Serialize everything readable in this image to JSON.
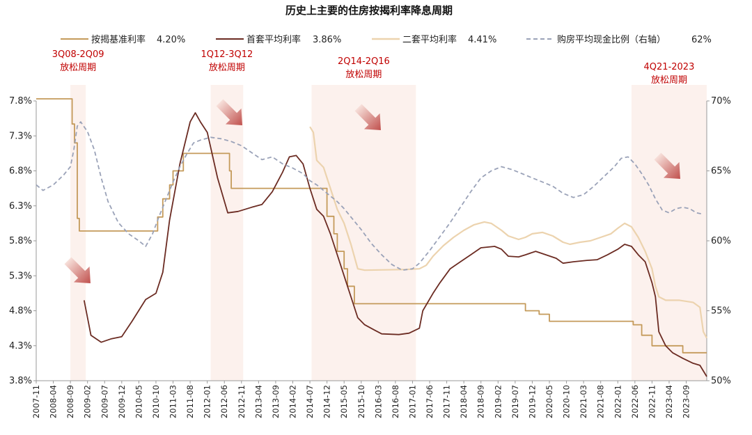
{
  "chart_data": {
    "type": "line",
    "title": "历史上主要的住房按揭利率降息周期",
    "xlabel": "",
    "ylabel_left": "",
    "ylabel_right": "",
    "y_left": {
      "min": 3.8,
      "max": 7.8,
      "ticks": [
        "3.8%",
        "4.3%",
        "4.8%",
        "5.3%",
        "5.8%",
        "6.3%",
        "6.8%",
        "7.3%",
        "7.8%"
      ]
    },
    "y_right": {
      "min": 50,
      "max": 70,
      "ticks": [
        "50%",
        "55%",
        "60%",
        "65%",
        "70%"
      ]
    },
    "x_ticks": [
      "2007-11",
      "2008-04",
      "2008-09",
      "2009-02",
      "2009-07",
      "2009-12",
      "2010-05",
      "2010-10",
      "2011-03",
      "2011-08",
      "2012-01",
      "2012-06",
      "2012-11",
      "2013-04",
      "2013-09",
      "2014-02",
      "2014-07",
      "2014-12",
      "2015-05",
      "2015-10",
      "2016-03",
      "2016-08",
      "2017-01",
      "2017-06",
      "2017-11",
      "2018-04",
      "2018-09",
      "2019-02",
      "2019-07",
      "2019-12",
      "2020-05",
      "2020-10",
      "2021-03",
      "2021-08",
      "2022-01",
      "2022-06",
      "2022-11",
      "2023-04",
      "2023-09"
    ],
    "legend": [
      {
        "label": "按揭基准利率",
        "value": "4.20%",
        "color": "#c49a5a",
        "style": "solid"
      },
      {
        "label": "首套平均利率",
        "value": "3.86%",
        "color": "#6b2b22",
        "style": "solid"
      },
      {
        "label": "二套平均利率",
        "value": "4.41%",
        "color": "#ecd3ae",
        "style": "solid"
      },
      {
        "label": "购房平均现金比例（右轴）",
        "value": "62%",
        "color": "#9aa2b8",
        "style": "dashed"
      }
    ],
    "cycles": [
      {
        "line1": "3Q08-2Q09",
        "line2": "放松周期",
        "start": 10,
        "end": 14.5
      },
      {
        "line1": "1Q12-3Q12",
        "line2": "放松周期",
        "start": 51,
        "end": 60.5
      },
      {
        "line1": "2Q14-2Q16",
        "line2": "放松周期",
        "start": 80.5,
        "end": 111
      },
      {
        "line1": "4Q21-2023",
        "line2": "放松周期",
        "start": 174,
        "end": 196
      }
    ],
    "series": [
      {
        "name": "按揭基准利率",
        "axis": "left",
        "step": true,
        "color": "#c49a5a",
        "points": [
          [
            0,
            7.83
          ],
          [
            10,
            7.83
          ],
          [
            10.5,
            7.47
          ],
          [
            11.2,
            7.2
          ],
          [
            12,
            6.12
          ],
          [
            12.6,
            5.94
          ],
          [
            35,
            5.94
          ],
          [
            35.5,
            6.14
          ],
          [
            37,
            6.4
          ],
          [
            39,
            6.6
          ],
          [
            40,
            6.8
          ],
          [
            43,
            7.05
          ],
          [
            56,
            7.05
          ],
          [
            56.5,
            6.8
          ],
          [
            57,
            6.55
          ],
          [
            84,
            6.55
          ],
          [
            85,
            6.15
          ],
          [
            87,
            5.9
          ],
          [
            88,
            5.65
          ],
          [
            90,
            5.4
          ],
          [
            91,
            5.15
          ],
          [
            93,
            4.9
          ],
          [
            140,
            4.9
          ],
          [
            143,
            4.8
          ],
          [
            147,
            4.75
          ],
          [
            150,
            4.65
          ],
          [
            174,
            4.65
          ],
          [
            174.5,
            4.6
          ],
          [
            176.5,
            4.6
          ],
          [
            177,
            4.45
          ],
          [
            180,
            4.3
          ],
          [
            188,
            4.3
          ],
          [
            189,
            4.2
          ],
          [
            196,
            4.2
          ]
        ]
      },
      {
        "name": "首套平均利率",
        "axis": "left",
        "step": false,
        "color": "#6b2b22",
        "points": [
          [
            14,
            4.95
          ],
          [
            16,
            4.45
          ],
          [
            19,
            4.35
          ],
          [
            22,
            4.4
          ],
          [
            25,
            4.43
          ],
          [
            28,
            4.65
          ],
          [
            32,
            4.96
          ],
          [
            35,
            5.05
          ],
          [
            37,
            5.35
          ],
          [
            39,
            6.1
          ],
          [
            42,
            6.9
          ],
          [
            45,
            7.5
          ],
          [
            46.5,
            7.63
          ],
          [
            48,
            7.5
          ],
          [
            50,
            7.35
          ],
          [
            53,
            6.7
          ],
          [
            56,
            6.2
          ],
          [
            59,
            6.22
          ],
          [
            63,
            6.28
          ],
          [
            66,
            6.32
          ],
          [
            69,
            6.5
          ],
          [
            72,
            6.78
          ],
          [
            74,
            7.0
          ],
          [
            76,
            7.02
          ],
          [
            78,
            6.9
          ],
          [
            80,
            6.55
          ],
          [
            82,
            6.25
          ],
          [
            84,
            6.15
          ],
          [
            86,
            5.9
          ],
          [
            88,
            5.6
          ],
          [
            90,
            5.3
          ],
          [
            92,
            5.0
          ],
          [
            94,
            4.7
          ],
          [
            96,
            4.6
          ],
          [
            99,
            4.52
          ],
          [
            101,
            4.47
          ],
          [
            106,
            4.46
          ],
          [
            109,
            4.48
          ],
          [
            112,
            4.55
          ],
          [
            113,
            4.8
          ],
          [
            116,
            5.05
          ],
          [
            118,
            5.2
          ],
          [
            121,
            5.4
          ],
          [
            124,
            5.5
          ],
          [
            127,
            5.6
          ],
          [
            130,
            5.7
          ],
          [
            134,
            5.72
          ],
          [
            136,
            5.68
          ],
          [
            138,
            5.58
          ],
          [
            141,
            5.57
          ],
          [
            143,
            5.6
          ],
          [
            146,
            5.65
          ],
          [
            149,
            5.6
          ],
          [
            152,
            5.55
          ],
          [
            154,
            5.48
          ],
          [
            157,
            5.5
          ],
          [
            161,
            5.52
          ],
          [
            164,
            5.53
          ],
          [
            167,
            5.6
          ],
          [
            170,
            5.68
          ],
          [
            172,
            5.75
          ],
          [
            174,
            5.72
          ],
          [
            176,
            5.6
          ],
          [
            178,
            5.5
          ],
          [
            180,
            5.2
          ],
          [
            181,
            5.0
          ],
          [
            182,
            4.5
          ],
          [
            184,
            4.3
          ],
          [
            186,
            4.2
          ],
          [
            189,
            4.12
          ],
          [
            192,
            4.05
          ],
          [
            194,
            4.02
          ],
          [
            196,
            3.86
          ]
        ]
      },
      {
        "name": "二套平均利率",
        "axis": "left",
        "step": false,
        "color": "#ecd3ae",
        "points": [
          [
            80,
            7.43
          ],
          [
            81,
            7.35
          ],
          [
            82,
            6.95
          ],
          [
            84,
            6.85
          ],
          [
            86,
            6.55
          ],
          [
            88,
            6.25
          ],
          [
            90,
            6.05
          ],
          [
            92,
            5.75
          ],
          [
            94,
            5.4
          ],
          [
            96,
            5.38
          ],
          [
            108,
            5.39
          ],
          [
            112,
            5.4
          ],
          [
            114,
            5.45
          ],
          [
            116,
            5.58
          ],
          [
            119,
            5.73
          ],
          [
            122,
            5.85
          ],
          [
            125,
            5.95
          ],
          [
            128,
            6.03
          ],
          [
            131,
            6.07
          ],
          [
            133,
            6.05
          ],
          [
            136,
            5.95
          ],
          [
            138,
            5.87
          ],
          [
            141,
            5.82
          ],
          [
            143,
            5.85
          ],
          [
            145,
            5.9
          ],
          [
            148,
            5.92
          ],
          [
            151,
            5.87
          ],
          [
            154,
            5.78
          ],
          [
            156,
            5.75
          ],
          [
            159,
            5.78
          ],
          [
            162,
            5.8
          ],
          [
            165,
            5.85
          ],
          [
            168,
            5.9
          ],
          [
            170,
            5.98
          ],
          [
            172,
            6.05
          ],
          [
            174,
            6.0
          ],
          [
            176,
            5.85
          ],
          [
            178,
            5.65
          ],
          [
            180,
            5.4
          ],
          [
            181,
            5.15
          ],
          [
            182,
            5.0
          ],
          [
            184,
            4.95
          ],
          [
            188,
            4.95
          ],
          [
            192,
            4.92
          ],
          [
            194,
            4.85
          ],
          [
            195,
            4.5
          ],
          [
            196,
            4.41
          ]
        ]
      },
      {
        "name": "购房平均现金比例（右轴）",
        "axis": "right",
        "step": false,
        "dashed": true,
        "color": "#9aa2b8",
        "points": [
          [
            0,
            64.0
          ],
          [
            2,
            63.6
          ],
          [
            5,
            64.0
          ],
          [
            8,
            64.7
          ],
          [
            10,
            65.3
          ],
          [
            11,
            66.5
          ],
          [
            12,
            68.2
          ],
          [
            13,
            68.5
          ],
          [
            15,
            67.8
          ],
          [
            17,
            66.5
          ],
          [
            19,
            64.5
          ],
          [
            21,
            62.8
          ],
          [
            24,
            61.3
          ],
          [
            27,
            60.5
          ],
          [
            30,
            60.0
          ],
          [
            32,
            59.6
          ],
          [
            34,
            60.5
          ],
          [
            36,
            61.8
          ],
          [
            38,
            63.0
          ],
          [
            40,
            64.2
          ],
          [
            42,
            65.3
          ],
          [
            44,
            66.2
          ],
          [
            46,
            67.0
          ],
          [
            48,
            67.2
          ],
          [
            51,
            67.4
          ],
          [
            54,
            67.3
          ],
          [
            57,
            67.1
          ],
          [
            60,
            66.8
          ],
          [
            63,
            66.3
          ],
          [
            66,
            65.8
          ],
          [
            69,
            66.0
          ],
          [
            72,
            65.5
          ],
          [
            75,
            65.2
          ],
          [
            78,
            64.8
          ],
          [
            80,
            64.3
          ],
          [
            82,
            64.0
          ],
          [
            84,
            63.6
          ],
          [
            86,
            63.2
          ],
          [
            88,
            62.8
          ],
          [
            90,
            62.3
          ],
          [
            92,
            61.7
          ],
          [
            95,
            60.8
          ],
          [
            98,
            59.8
          ],
          [
            101,
            59.0
          ],
          [
            104,
            58.3
          ],
          [
            107,
            57.9
          ],
          [
            110,
            58.0
          ],
          [
            112,
            58.4
          ],
          [
            115,
            59.3
          ],
          [
            118,
            60.3
          ],
          [
            121,
            61.3
          ],
          [
            124,
            62.4
          ],
          [
            127,
            63.5
          ],
          [
            130,
            64.5
          ],
          [
            133,
            65.0
          ],
          [
            136,
            65.3
          ],
          [
            139,
            65.1
          ],
          [
            142,
            64.8
          ],
          [
            145,
            64.5
          ],
          [
            148,
            64.2
          ],
          [
            151,
            63.9
          ],
          [
            154,
            63.4
          ],
          [
            157,
            63.1
          ],
          [
            160,
            63.3
          ],
          [
            163,
            63.9
          ],
          [
            166,
            64.6
          ],
          [
            169,
            65.3
          ],
          [
            171,
            65.9
          ],
          [
            173,
            66.0
          ],
          [
            175,
            65.5
          ],
          [
            177,
            64.8
          ],
          [
            179,
            64.0
          ],
          [
            181,
            63.0
          ],
          [
            183,
            62.2
          ],
          [
            185,
            62.0
          ],
          [
            187,
            62.3
          ],
          [
            189,
            62.4
          ],
          [
            191,
            62.3
          ],
          [
            193,
            62.0
          ],
          [
            195,
            61.9
          ]
        ]
      }
    ]
  }
}
